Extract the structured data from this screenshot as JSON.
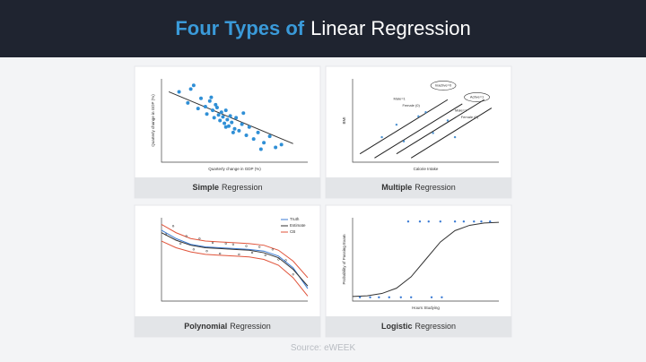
{
  "header": {
    "title_highlight": "Four Types of",
    "title_rest": "Linear Regression"
  },
  "panels": [
    {
      "caption_bold": "Simple",
      "caption_rest": "Regression",
      "chart": {
        "type": "scatter",
        "xlabel": "Quarterly change in GDP (%)",
        "ylabel": "Quarterly change in GDP (%)",
        "xlim": [
          0,
          10
        ],
        "ylim": [
          1,
          10
        ],
        "points": {
          "color": "#2f8fd6",
          "x": [
            1.2,
            1.8,
            2.0,
            2.5,
            2.7,
            3.0,
            3.1,
            3.3,
            3.5,
            3.6,
            3.8,
            3.9,
            4.0,
            4.1,
            4.2,
            4.3,
            4.4,
            4.5,
            4.6,
            4.7,
            4.8,
            5.0,
            5.1,
            5.3,
            5.5,
            5.8,
            6.0,
            6.3,
            6.6,
            7.0,
            7.4,
            7.8,
            8.2,
            2.2,
            3.4,
            4.9,
            5.6,
            6.8,
            3.7,
            4.4
          ],
          "y": [
            8.6,
            7.4,
            8.9,
            6.8,
            7.9,
            7.0,
            6.2,
            7.6,
            6.6,
            5.8,
            6.9,
            6.1,
            5.5,
            6.4,
            5.9,
            5.2,
            6.6,
            5.6,
            4.9,
            6.0,
            5.3,
            4.6,
            5.8,
            4.4,
            5.1,
            3.9,
            4.8,
            3.5,
            4.2,
            3.1,
            3.8,
            2.6,
            2.9,
            9.3,
            8.0,
            4.2,
            6.3,
            2.4,
            7.2,
            4.8
          ]
        },
        "lines": [
          {
            "color": "#333333",
            "x": [
              0.5,
              9
            ],
            "y": [
              8.6,
              3.0
            ]
          }
        ]
      }
    },
    {
      "caption_bold": "Multiple",
      "caption_rest": "Regression",
      "chart": {
        "type": "multiple",
        "xlabel": "Calorie Intake",
        "ylabel": "BMI",
        "xlim": [
          0,
          10
        ],
        "ylim": [
          0,
          10
        ],
        "points": {
          "color": "#4a90d0",
          "x": [
            2,
            3,
            3.5,
            5,
            5.5,
            6.5,
            7,
            4.5
          ],
          "y": [
            3,
            4.5,
            2.5,
            6,
            3.5,
            5,
            3,
            5.5
          ]
        },
        "lines": [
          {
            "color": "#222222",
            "x": [
              0.5,
              6.5
            ],
            "y": [
              1,
              7.5
            ]
          },
          {
            "color": "#222222",
            "x": [
              1.5,
              7.5
            ],
            "y": [
              0.5,
              7
            ]
          },
          {
            "color": "#222222",
            "x": [
              3,
              9
            ],
            "y": [
              1,
              7.5
            ]
          },
          {
            "color": "#222222",
            "x": [
              4,
              9.5
            ],
            "y": [
              0.5,
              6.5
            ]
          }
        ],
        "labels": [
          "Inactive=0",
          "Male=1",
          "Female (0)",
          "Active=1",
          "Male=1",
          "Female (0)"
        ]
      }
    },
    {
      "caption_bold": "Polynomial",
      "caption_rest": "Regression",
      "chart": {
        "type": "polynomial",
        "xlim": [
          0,
          10
        ],
        "ylim": [
          0,
          10
        ],
        "points": {
          "color": "#333333",
          "x": [
            0.3,
            0.8,
            1.3,
            1.7,
            2.2,
            2.6,
            3.1,
            3.5,
            4.0,
            4.4,
            4.9,
            5.3,
            5.8,
            6.2,
            6.7,
            7.1,
            7.6,
            8.0,
            8.5,
            9.0
          ],
          "y": [
            8.0,
            9.0,
            6.9,
            7.8,
            6.2,
            7.5,
            6.0,
            7.0,
            5.7,
            6.9,
            6.8,
            5.6,
            6.6,
            5.8,
            6.5,
            5.5,
            6.2,
            5.0,
            4.9,
            3.2
          ]
        },
        "lines": [
          {
            "name": "Truth",
            "color": "#3b7bd4",
            "x": [
              0,
              1,
              2,
              3,
              4,
              5,
              6,
              7,
              8,
              9,
              10
            ],
            "y": [
              8.5,
              7.5,
              6.8,
              6.5,
              6.4,
              6.3,
              6.2,
              6.0,
              5.4,
              4.0,
              1.5
            ]
          },
          {
            "name": "Estimate",
            "color": "#333333",
            "x": [
              0,
              1,
              2,
              3,
              4,
              5,
              6,
              7,
              8,
              9,
              10
            ],
            "y": [
              8.2,
              7.3,
              6.7,
              6.4,
              6.3,
              6.2,
              6.1,
              5.8,
              5.2,
              3.8,
              1.8
            ]
          },
          {
            "name": "CB",
            "color": "#e0533a",
            "x": [
              0,
              1,
              2,
              3,
              4,
              5,
              6,
              7,
              8,
              9,
              10
            ],
            "y": [
              9.2,
              8.2,
              7.5,
              7.2,
              7.1,
              7.0,
              6.9,
              6.7,
              6.1,
              4.8,
              2.8
            ],
            "y2": [
              7.2,
              6.4,
              5.9,
              5.6,
              5.5,
              5.4,
              5.3,
              5.0,
              4.3,
              2.8,
              0.6
            ]
          }
        ]
      }
    },
    {
      "caption_bold": "Logistic",
      "caption_rest": "Regression",
      "chart": {
        "type": "logistic",
        "xlabel": "Hours Studying",
        "ylabel": "Probability of Passing Exam",
        "xlim": [
          0,
          10
        ],
        "ylim": [
          -0.05,
          1.05
        ],
        "points": {
          "color": "#3b7bd4",
          "x": [
            0.5,
            1.2,
            1.8,
            2.5,
            3.3,
            4.0,
            5.4,
            6.1,
            3.8,
            4.6,
            5.2,
            6.0,
            7.0,
            7.6,
            8.3,
            8.8,
            9.4
          ],
          "y": [
            0,
            0,
            0,
            0,
            0,
            0,
            0,
            0,
            1,
            1,
            1,
            1,
            1,
            1,
            1,
            1,
            1
          ]
        },
        "lines": [
          {
            "color": "#333333",
            "x": [
              0,
              1,
              2,
              3,
              4,
              5,
              6,
              7,
              8,
              9,
              10
            ],
            "y": [
              0.01,
              0.02,
              0.05,
              0.12,
              0.27,
              0.5,
              0.73,
              0.88,
              0.95,
              0.98,
              0.99
            ]
          }
        ]
      }
    }
  ],
  "source": "Source: eWEEK"
}
